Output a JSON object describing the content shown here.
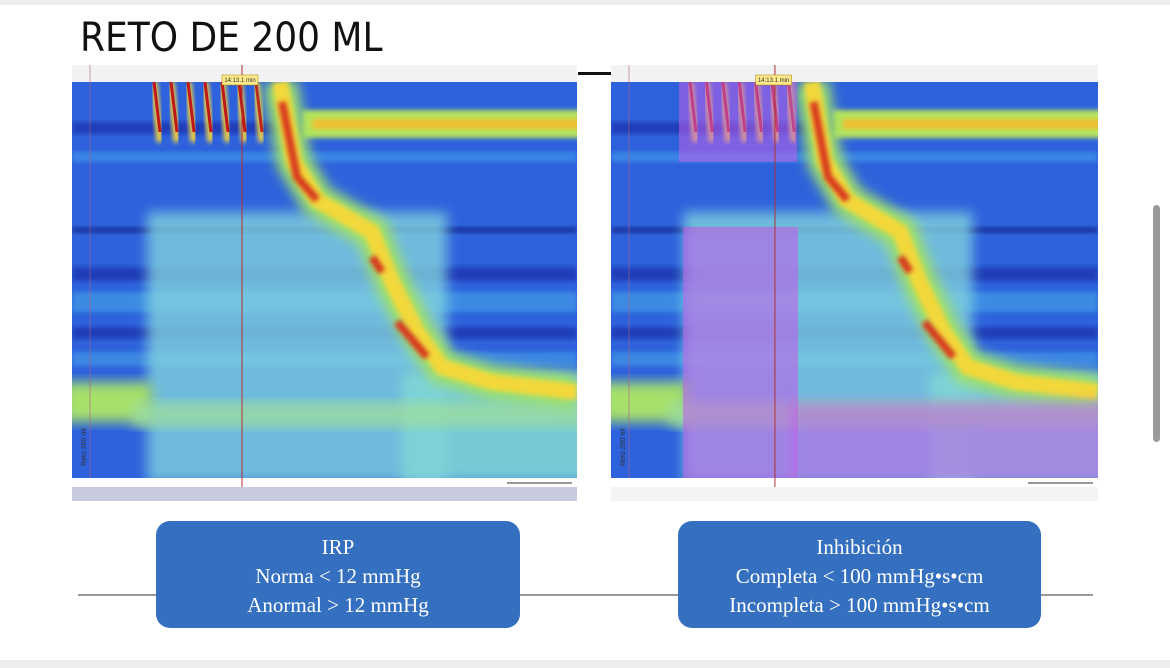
{
  "title": "RETO DE 200 ML",
  "panels": [
    {
      "time_marker": "14:13.1 min",
      "axis_label": "Reto 200 ml"
    },
    {
      "time_marker": "14:13.1 min",
      "axis_label": "Reto 200 ml"
    }
  ],
  "boxes": [
    {
      "lines": [
        "IRP",
        "Norma < 12 mmHg",
        "Anormal > 12 mmHg"
      ]
    },
    {
      "lines": [
        "Inhibición",
        "Completa < 100 mmHg•s•cm",
        "Incompleta > 100 mmHg•s•cm"
      ]
    }
  ]
}
